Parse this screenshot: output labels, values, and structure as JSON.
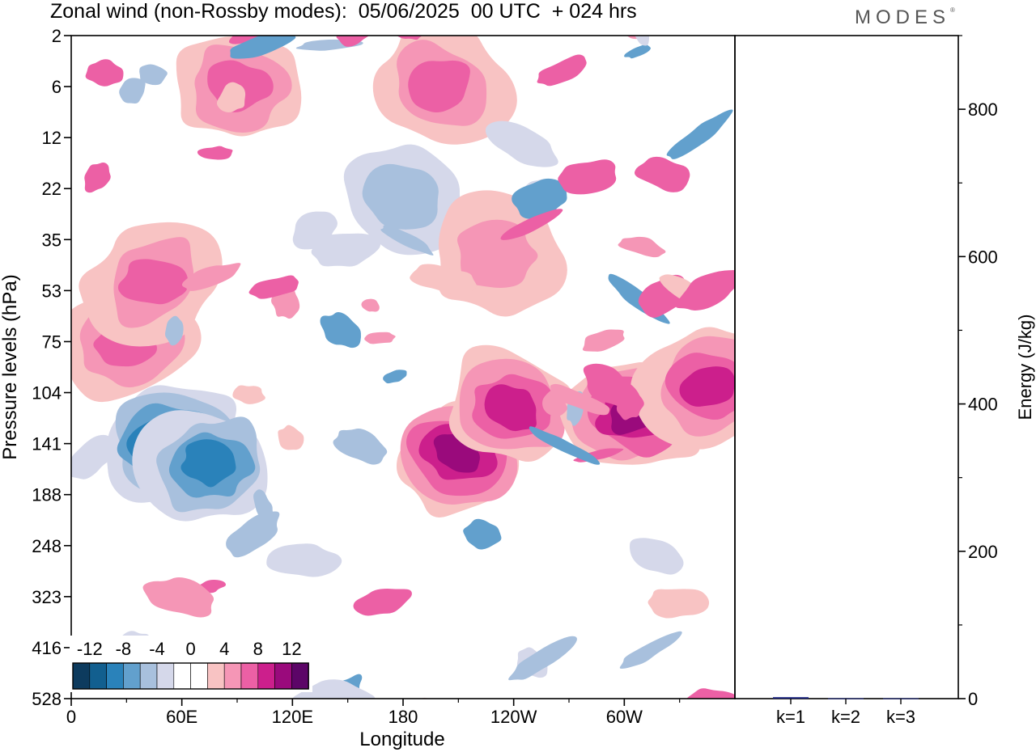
{
  "header": {
    "title": "Zonal wind (non-Rossby modes):  05/06/2025  00 UTC  + 024 hrs",
    "logo_text": "MODES",
    "logo_mark": "®"
  },
  "chart_data": [
    {
      "type": "heatmap",
      "title": "Zonal wind (non-Rossby modes):  05/06/2025  00 UTC  + 024 hrs",
      "xlabel": "Longitude",
      "ylabel": "Pressure levels (hPa)",
      "x_ticks": [
        "0",
        "60E",
        "120E",
        "180",
        "120W",
        "60W"
      ],
      "x_tick_values": [
        0,
        60,
        120,
        180,
        240,
        300
      ],
      "xlim": [
        0,
        360
      ],
      "y_ticks": [
        2,
        6,
        12,
        22,
        35,
        53,
        75,
        104,
        141,
        188,
        248,
        323,
        416,
        528
      ],
      "y_reversed": true,
      "colorbar": {
        "labels": [
          "-12",
          "-8",
          "-4",
          "0",
          "4",
          "8",
          "12"
        ],
        "colors": [
          "#0d3b5e",
          "#125f8f",
          "#2a82ba",
          "#62a0cd",
          "#a8c0dd",
          "#d5d8ea",
          "#ffffff",
          "#ffffff",
          "#f8c3c3",
          "#f596b6",
          "#ec60a5",
          "#cc1f8c",
          "#9a0a7c",
          "#5c0567"
        ]
      },
      "features": [
        {
          "lon": 55,
          "level": 141,
          "value": -12
        },
        {
          "lon": 75,
          "level": 160,
          "value": -9
        },
        {
          "lon": 30,
          "level": 75,
          "value": 7
        },
        {
          "lon": 45,
          "level": 50,
          "value": 6
        },
        {
          "lon": 210,
          "level": 150,
          "value": 11
        },
        {
          "lon": 240,
          "level": 115,
          "value": 8
        },
        {
          "lon": 305,
          "level": 120,
          "value": 11
        },
        {
          "lon": 345,
          "level": 100,
          "value": 9
        },
        {
          "lon": 180,
          "level": 25,
          "value": -4
        },
        {
          "lon": 230,
          "level": 40,
          "value": 4
        },
        {
          "lon": 200,
          "level": 6,
          "value": 6
        },
        {
          "lon": 90,
          "level": 6,
          "value": 6
        }
      ]
    },
    {
      "type": "bar",
      "categories": [
        "k=1",
        "k=2",
        "k=3"
      ],
      "values": [
        2,
        0.5,
        0.5
      ],
      "ylabel": "Energy (J/kg)",
      "ylim": [
        0,
        900
      ],
      "y_ticks": [
        0,
        200,
        400,
        600,
        800
      ],
      "bar_color": "#1a237e"
    }
  ]
}
